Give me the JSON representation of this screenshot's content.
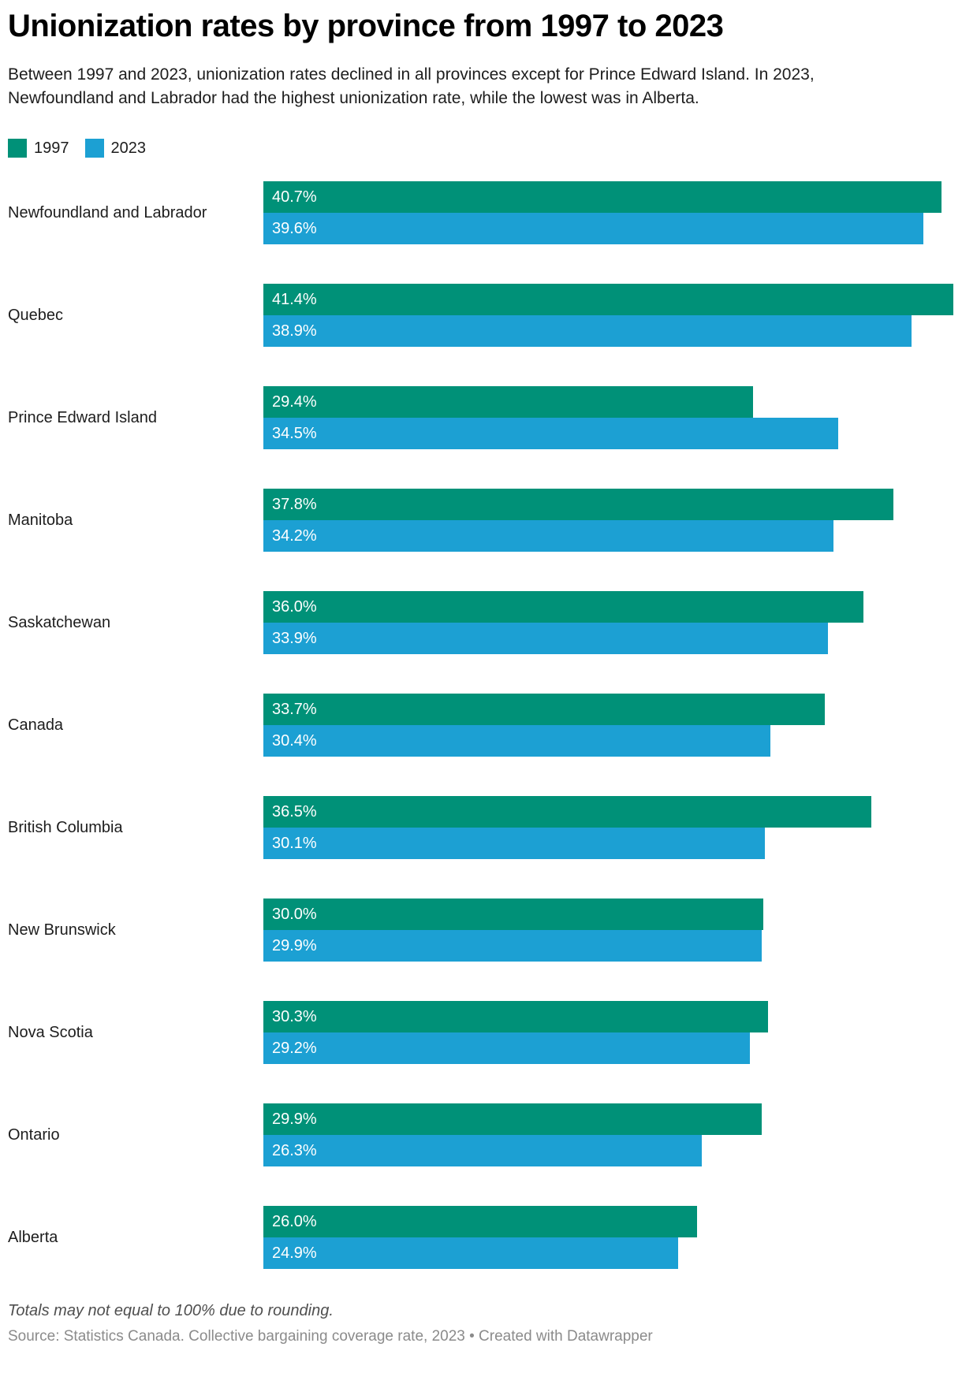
{
  "header": {
    "title": "Unionization rates by province from 1997 to 2023",
    "subtitle": "Between 1997 and 2023, unionization rates declined in all provinces except for Prince Edward Island. In 2023, Newfoundland and Labrador had the highest unionization rate, while the lowest was in Alberta."
  },
  "colors": {
    "series_1997": "#009178",
    "series_2023": "#1ca0d3",
    "value_label_text": "#ffffff"
  },
  "chart_data": {
    "type": "bar",
    "orientation": "horizontal",
    "title": "Unionization rates by province from 1997 to 2023",
    "categories": [
      "Newfoundland and Labrador",
      "Quebec",
      "Prince Edward Island",
      "Manitoba",
      "Saskatchewan",
      "Canada",
      "British Columbia",
      "New Brunswick",
      "Nova Scotia",
      "Ontario",
      "Alberta"
    ],
    "series": [
      {
        "name": "1997",
        "color": "#009178",
        "values": [
          40.7,
          41.4,
          29.4,
          37.8,
          36.0,
          33.7,
          36.5,
          30.0,
          30.3,
          29.9,
          26.0
        ]
      },
      {
        "name": "2023",
        "color": "#1ca0d3",
        "values": [
          39.6,
          38.9,
          34.5,
          34.2,
          33.9,
          30.4,
          30.1,
          29.9,
          29.2,
          26.3,
          24.9
        ]
      }
    ],
    "value_suffix": "%",
    "value_decimals": 1,
    "value_labels_position": "inside-left",
    "xlim": [
      0,
      41.4
    ],
    "grid": false,
    "legend_position": "top-left"
  },
  "footer": {
    "note": "Totals may not equal to 100% due to rounding.",
    "source": "Source: Statistics Canada. Collective bargaining coverage rate, 2023 • Created with Datawrapper"
  }
}
